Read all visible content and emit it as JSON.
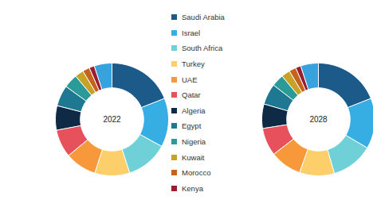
{
  "chart_data": [
    {
      "type": "pie",
      "title": "2022",
      "categories": [
        "Saudi Arabia",
        "Israel",
        "South Africa",
        "Turkey",
        "UAE",
        "Qatar",
        "Algeria",
        "Egypt",
        "Nigeria",
        "Kuwait",
        "Morocco",
        "Kenya",
        null
      ],
      "values": [
        19,
        14,
        12,
        10,
        9,
        8,
        7,
        6,
        4,
        2.5,
        2,
        1.5,
        5
      ],
      "colors": [
        "#1c5a8a",
        "#36ade3",
        "#6fd0d8",
        "#fccf6b",
        "#f7993a",
        "#e6515c",
        "#0e2a45",
        "#1f7892",
        "#2a9b98",
        "#c6a226",
        "#c4631d",
        "#9a1d30",
        "#38a2df"
      ]
    },
    {
      "type": "pie",
      "title": "2028",
      "categories": [
        "Saudi Arabia",
        "Israel",
        "South Africa",
        "Turkey",
        "UAE",
        "Qatar",
        "Algeria",
        "Egypt",
        "Nigeria",
        "Kuwait",
        "Morocco",
        "Kenya",
        null
      ],
      "values": [
        19,
        14.5,
        12,
        10,
        9,
        8,
        7,
        6,
        3.5,
        2.5,
        2,
        1.5,
        5
      ],
      "colors": [
        "#1c5a8a",
        "#36ade3",
        "#6fd0d8",
        "#fccf6b",
        "#f7993a",
        "#e6515c",
        "#0e2a45",
        "#1f7892",
        "#2a9b98",
        "#c6a226",
        "#c4631d",
        "#9a1d30",
        "#38a2df"
      ]
    }
  ]
}
